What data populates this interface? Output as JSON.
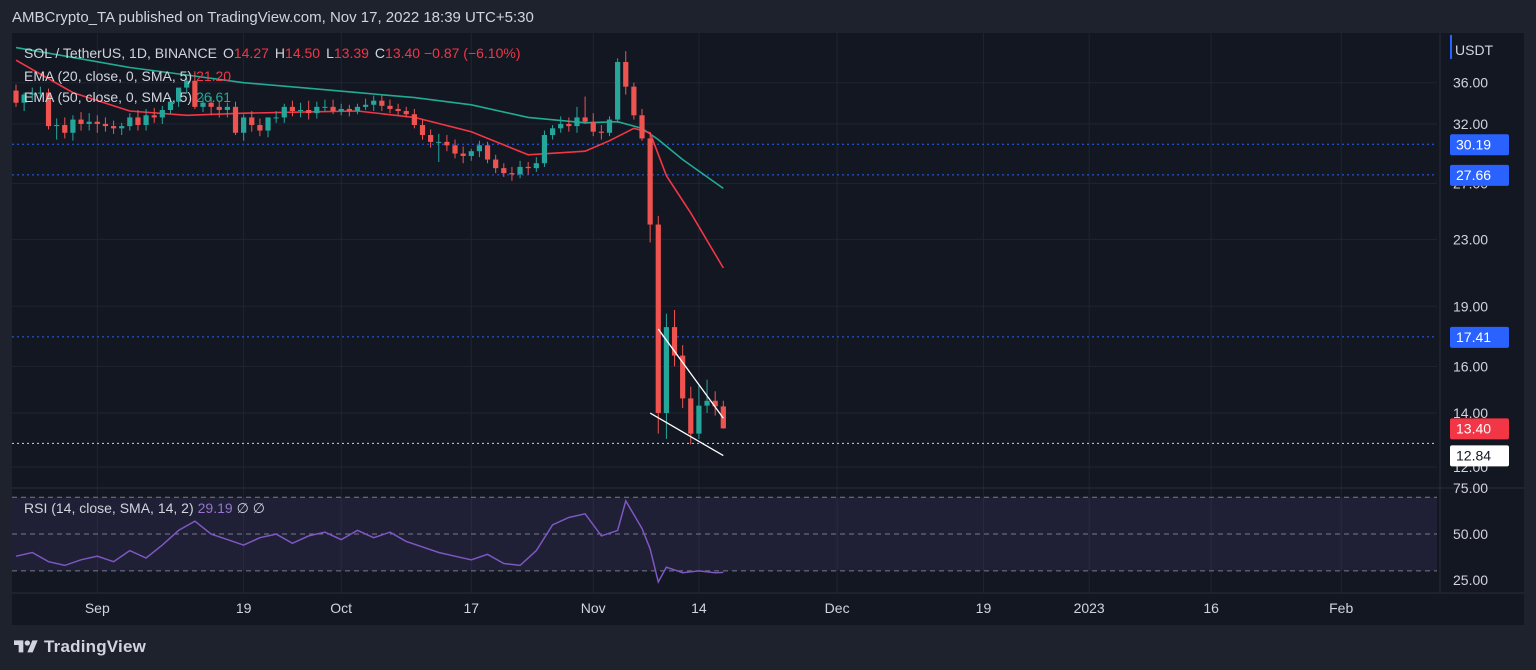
{
  "header": {
    "published": "AMBCrypto_TA published on TradingView.com, Nov 17, 2022 18:39 UTC+5:30"
  },
  "legend": {
    "symbol": "SOL / TetherUS, 1D, BINANCE",
    "o_label": "O",
    "o": "14.27",
    "h_label": "H",
    "h": "14.50",
    "l_label": "L",
    "l": "13.39",
    "c_label": "C",
    "c": "13.40",
    "change": "−0.87 (−6.10%)",
    "ema20_label": "EMA (20, close, 0, SMA, 5)",
    "ema20_value": "21.20",
    "ema50_label": "EMA (50, close, 0, SMA, 5)",
    "ema50_value": "26.61",
    "rsi_label": "RSI (14, close, SMA, 14, 2)",
    "rsi_value": "29.19",
    "rsi_extra": "∅ ∅"
  },
  "footer": {
    "brand": "TradingView"
  },
  "colors": {
    "up": "#26a69a",
    "down": "#ef5350",
    "ema20": "#f23645",
    "ema50": "#22ab94",
    "rsi": "#7e57c2",
    "level": "#2962ff",
    "text": "#d1d4dc"
  },
  "chart_data": {
    "type": "candlestick",
    "currency": "USDT",
    "x_ticks": [
      "Sep",
      "19",
      "Oct",
      "17",
      "Nov",
      "14",
      "Dec",
      "19",
      "2023",
      "16",
      "Feb"
    ],
    "x_tick_dates": [
      "2022-09-01",
      "2022-09-19",
      "2022-10-01",
      "2022-10-17",
      "2022-11-01",
      "2022-11-14",
      "2022-12-01",
      "2022-12-19",
      "2023-01-01",
      "2023-01-16",
      "2023-02-01"
    ],
    "price_axis": {
      "ticks": [
        "36.00",
        "32.00",
        "27.00",
        "23.00",
        "19.00",
        "16.00",
        "14.00",
        "12.00"
      ],
      "scale": "log",
      "range": [
        11.3,
        41.5
      ]
    },
    "candles": {
      "dates": [
        "2022-08-22",
        "2022-08-23",
        "2022-08-24",
        "2022-08-25",
        "2022-08-26",
        "2022-08-27",
        "2022-08-28",
        "2022-08-29",
        "2022-08-30",
        "2022-08-31",
        "2022-09-01",
        "2022-09-02",
        "2022-09-03",
        "2022-09-04",
        "2022-09-05",
        "2022-09-06",
        "2022-09-07",
        "2022-09-08",
        "2022-09-09",
        "2022-09-10",
        "2022-09-11",
        "2022-09-12",
        "2022-09-13",
        "2022-09-14",
        "2022-09-15",
        "2022-09-16",
        "2022-09-17",
        "2022-09-18",
        "2022-09-19",
        "2022-09-20",
        "2022-09-21",
        "2022-09-22",
        "2022-09-23",
        "2022-09-24",
        "2022-09-25",
        "2022-09-26",
        "2022-09-27",
        "2022-09-28",
        "2022-09-29",
        "2022-09-30",
        "2022-10-01",
        "2022-10-02",
        "2022-10-03",
        "2022-10-04",
        "2022-10-05",
        "2022-10-06",
        "2022-10-07",
        "2022-10-08",
        "2022-10-09",
        "2022-10-10",
        "2022-10-11",
        "2022-10-12",
        "2022-10-13",
        "2022-10-14",
        "2022-10-15",
        "2022-10-16",
        "2022-10-17",
        "2022-10-18",
        "2022-10-19",
        "2022-10-20",
        "2022-10-21",
        "2022-10-22",
        "2022-10-23",
        "2022-10-24",
        "2022-10-25",
        "2022-10-26",
        "2022-10-27",
        "2022-10-28",
        "2022-10-29",
        "2022-10-30",
        "2022-10-31",
        "2022-11-01",
        "2022-11-02",
        "2022-11-03",
        "2022-11-04",
        "2022-11-05",
        "2022-11-06",
        "2022-11-07",
        "2022-11-08",
        "2022-11-09",
        "2022-11-10",
        "2022-11-11",
        "2022-11-12",
        "2022-11-13",
        "2022-11-14",
        "2022-11-15",
        "2022-11-16",
        "2022-11-17"
      ],
      "open": [
        35.2,
        34.0,
        34.8,
        34.9,
        35.0,
        31.8,
        31.9,
        31.2,
        32.4,
        32.0,
        32.2,
        32.0,
        31.8,
        31.6,
        31.8,
        32.6,
        31.9,
        32.8,
        32.6,
        33.3,
        34.1,
        35.5,
        36.2,
        33.6,
        34.0,
        33.6,
        33.3,
        33.6,
        31.2,
        32.6,
        31.9,
        31.4,
        32.6,
        32.6,
        33.6,
        33.2,
        33.3,
        33.0,
        33.6,
        33.6,
        33.2,
        33.4,
        33.2,
        33.6,
        33.8,
        34.2,
        33.7,
        33.4,
        33.2,
        32.9,
        31.9,
        31.0,
        30.4,
        30.4,
        30.1,
        29.4,
        29.2,
        29.6,
        30.1,
        28.9,
        28.2,
        27.8,
        27.7,
        28.3,
        28.2,
        28.6,
        31.0,
        31.6,
        32.0,
        31.8,
        32.6,
        32.2,
        31.3,
        31.2,
        32.4,
        38.2,
        35.6,
        32.8,
        30.7,
        24.0,
        14.0,
        17.9,
        16.5,
        14.6,
        13.2,
        14.3,
        14.5,
        14.27
      ],
      "high": [
        35.8,
        35.0,
        35.5,
        35.6,
        35.4,
        32.5,
        32.6,
        32.8,
        33.1,
        33.0,
        32.8,
        32.6,
        32.3,
        32.1,
        33.0,
        33.3,
        33.4,
        33.5,
        33.7,
        34.5,
        35.2,
        36.5,
        37.2,
        34.5,
        34.6,
        34.2,
        34.0,
        34.1,
        32.9,
        33.2,
        32.5,
        32.6,
        33.2,
        33.9,
        34.2,
        34.0,
        34.2,
        34.1,
        34.3,
        34.3,
        33.9,
        33.8,
        33.9,
        34.4,
        34.7,
        34.8,
        34.3,
        33.9,
        33.6,
        33.4,
        32.4,
        31.5,
        31.1,
        31.0,
        30.6,
        30.0,
        29.8,
        30.5,
        30.4,
        29.3,
        28.6,
        28.3,
        28.8,
        28.7,
        29.1,
        31.4,
        31.9,
        32.7,
        32.6,
        33.6,
        34.6,
        33.0,
        31.9,
        32.7,
        38.6,
        39.4,
        36.0,
        33.4,
        31.2,
        24.6,
        18.6,
        18.8,
        17.0,
        15.1,
        15.2,
        15.4,
        14.9,
        14.5
      ],
      "low": [
        33.6,
        33.2,
        34.2,
        34.3,
        31.5,
        30.6,
        30.7,
        30.5,
        31.4,
        31.4,
        31.2,
        31.3,
        31.1,
        31.0,
        31.4,
        31.4,
        31.4,
        32.1,
        32.0,
        32.9,
        33.6,
        34.9,
        33.4,
        33.1,
        32.8,
        32.6,
        32.6,
        31.0,
        30.5,
        31.3,
        30.9,
        30.8,
        32.1,
        32.1,
        32.7,
        32.6,
        32.4,
        32.5,
        33.1,
        32.9,
        32.8,
        32.7,
        32.9,
        33.3,
        33.2,
        33.2,
        33.0,
        32.8,
        32.6,
        31.6,
        30.6,
        29.9,
        28.7,
        29.6,
        29.0,
        28.6,
        28.8,
        29.1,
        28.6,
        27.8,
        27.5,
        27.2,
        27.4,
        27.7,
        27.9,
        28.3,
        30.6,
        31.2,
        31.3,
        31.2,
        32.0,
        30.9,
        30.6,
        30.9,
        32.1,
        34.8,
        32.4,
        30.5,
        22.8,
        13.2,
        13.0,
        16.0,
        14.2,
        12.8,
        13.0,
        14.0,
        13.9,
        13.39
      ],
      "close": [
        34.0,
        34.8,
        34.9,
        35.0,
        31.8,
        31.9,
        31.2,
        32.4,
        32.0,
        32.2,
        32.0,
        31.8,
        31.6,
        31.8,
        32.6,
        31.9,
        32.8,
        32.6,
        33.3,
        34.1,
        35.5,
        36.2,
        33.6,
        34.0,
        33.6,
        33.3,
        33.6,
        31.2,
        32.6,
        31.9,
        31.4,
        32.6,
        32.6,
        33.6,
        33.2,
        33.3,
        33.0,
        33.6,
        33.6,
        33.2,
        33.4,
        33.2,
        33.6,
        33.8,
        34.2,
        33.7,
        33.4,
        33.2,
        32.9,
        31.9,
        31.0,
        30.4,
        30.4,
        30.1,
        29.4,
        29.2,
        29.6,
        30.1,
        28.9,
        28.2,
        27.8,
        27.7,
        28.3,
        28.2,
        28.6,
        31.0,
        31.6,
        32.0,
        31.8,
        32.6,
        32.2,
        31.3,
        31.2,
        32.4,
        38.2,
        35.6,
        32.8,
        30.7,
        24.0,
        14.0,
        17.9,
        16.5,
        14.6,
        13.2,
        14.3,
        14.5,
        14.27,
        13.4
      ]
    },
    "ema20": {
      "name": "EMA (20, close, 0, SMA, 5)",
      "dates": [
        "2022-08-22",
        "2022-08-29",
        "2022-09-05",
        "2022-09-12",
        "2022-09-19",
        "2022-09-26",
        "2022-10-03",
        "2022-10-10",
        "2022-10-17",
        "2022-10-24",
        "2022-10-31",
        "2022-11-03",
        "2022-11-06",
        "2022-11-08",
        "2022-11-10",
        "2022-11-13",
        "2022-11-17"
      ],
      "values": [
        38.4,
        35.0,
        33.2,
        32.8,
        33.0,
        33.1,
        33.2,
        32.6,
        31.3,
        29.3,
        29.6,
        30.5,
        31.6,
        31.2,
        27.6,
        24.8,
        21.2
      ]
    },
    "ema50": {
      "name": "EMA (50, close, 0, SMA, 5)",
      "dates": [
        "2022-08-22",
        "2022-08-29",
        "2022-09-05",
        "2022-09-12",
        "2022-09-19",
        "2022-09-26",
        "2022-10-03",
        "2022-10-10",
        "2022-10-17",
        "2022-10-24",
        "2022-10-31",
        "2022-11-04",
        "2022-11-07",
        "2022-11-09",
        "2022-11-12",
        "2022-11-17"
      ],
      "values": [
        39.8,
        38.7,
        37.6,
        36.8,
        36.0,
        35.5,
        35.0,
        34.5,
        33.8,
        32.6,
        32.1,
        32.2,
        31.6,
        30.6,
        28.9,
        26.61
      ]
    },
    "price_levels": [
      30.19,
      27.66,
      17.41
    ],
    "support_line": 12.84,
    "last_price": 13.4,
    "level_labels": [
      "30.19",
      "27.66",
      "17.41",
      "13.40",
      "12.84"
    ],
    "falling_wedge": {
      "upper": [
        [
          "2022-11-09",
          17.8
        ],
        [
          "2022-11-17",
          13.8
        ]
      ],
      "lower": [
        [
          "2022-11-08",
          14.0
        ],
        [
          "2022-11-17",
          12.4
        ]
      ]
    },
    "rsi": {
      "name": "RSI (14, close, SMA, 14, 2)",
      "axis_ticks": [
        "75.00",
        "50.00",
        "25.00"
      ],
      "range": [
        18,
        75
      ],
      "bands": [
        70,
        50,
        30
      ],
      "dates": [
        "2022-08-22",
        "2022-08-24",
        "2022-08-26",
        "2022-08-28",
        "2022-08-30",
        "2022-09-01",
        "2022-09-03",
        "2022-09-05",
        "2022-09-07",
        "2022-09-09",
        "2022-09-11",
        "2022-09-13",
        "2022-09-15",
        "2022-09-17",
        "2022-09-19",
        "2022-09-21",
        "2022-09-23",
        "2022-09-25",
        "2022-09-27",
        "2022-09-29",
        "2022-10-01",
        "2022-10-03",
        "2022-10-05",
        "2022-10-07",
        "2022-10-09",
        "2022-10-11",
        "2022-10-13",
        "2022-10-15",
        "2022-10-17",
        "2022-10-19",
        "2022-10-21",
        "2022-10-23",
        "2022-10-25",
        "2022-10-27",
        "2022-10-29",
        "2022-10-31",
        "2022-11-02",
        "2022-11-04",
        "2022-11-05",
        "2022-11-07",
        "2022-11-08",
        "2022-11-09",
        "2022-11-10",
        "2022-11-12",
        "2022-11-14",
        "2022-11-16",
        "2022-11-17"
      ],
      "values": [
        38,
        40,
        35,
        33,
        36,
        38,
        35,
        41,
        37,
        44,
        52,
        57,
        50,
        47,
        44,
        48,
        50,
        45,
        49,
        51,
        47,
        52,
        48,
        51,
        46,
        43,
        40,
        38,
        36,
        39,
        34,
        33,
        41,
        55,
        59,
        61,
        49,
        52,
        68,
        53,
        42,
        24,
        32,
        29,
        30,
        29,
        29.19
      ]
    }
  }
}
